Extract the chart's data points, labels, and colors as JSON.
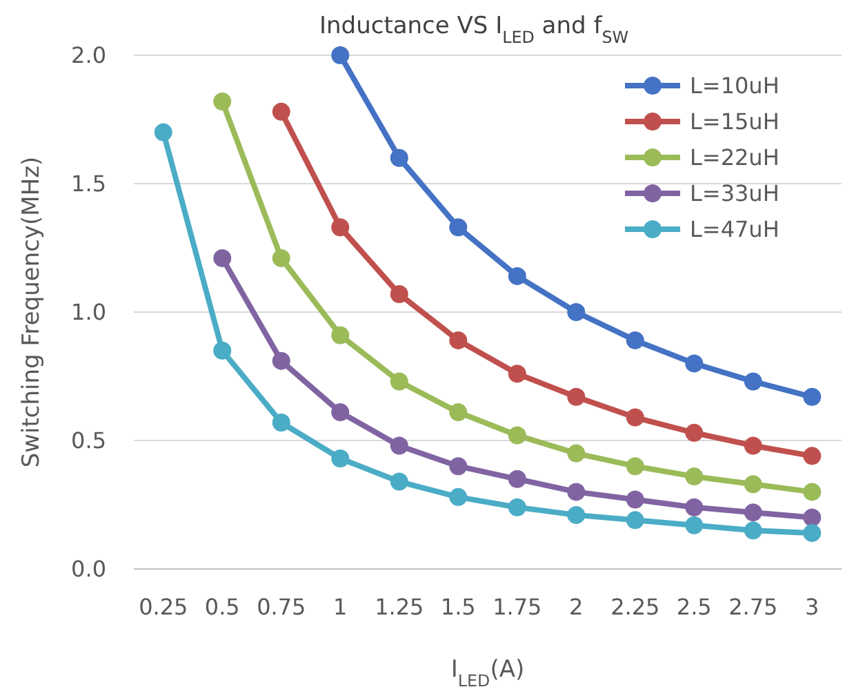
{
  "chart_data": {
    "type": "line",
    "title": "Inductance VS I$_{LED}$ and f$_{SW}$",
    "xlabel": "I$_{LED}$(A)",
    "ylabel": "Switching Frequency(MHz)",
    "categories": [
      "0.25",
      "0.5",
      "0.75",
      "1",
      "1.25",
      "1.5",
      "1.75",
      "2",
      "2.25",
      "2.5",
      "2.75",
      "3"
    ],
    "series": [
      {
        "name": "L=10uH",
        "color": "#4472c4",
        "values": [
          null,
          null,
          null,
          2.0,
          1.6,
          1.33,
          1.14,
          1.0,
          0.89,
          0.8,
          0.73,
          0.67
        ]
      },
      {
        "name": "L=15uH",
        "color": "#c0504d",
        "values": [
          null,
          null,
          1.78,
          1.33,
          1.07,
          0.89,
          0.76,
          0.67,
          0.59,
          0.53,
          0.48,
          0.44
        ]
      },
      {
        "name": "L=22uH",
        "color": "#9bbb59",
        "values": [
          null,
          1.82,
          1.21,
          0.91,
          0.73,
          0.61,
          0.52,
          0.45,
          0.4,
          0.36,
          0.33,
          0.3
        ]
      },
      {
        "name": "L=33uH",
        "color": "#8064a2",
        "values": [
          null,
          1.21,
          0.81,
          0.61,
          0.48,
          0.4,
          0.35,
          0.3,
          0.27,
          0.24,
          0.22,
          0.2
        ]
      },
      {
        "name": "L=47uH",
        "color": "#4bacc6",
        "values": [
          1.7,
          0.85,
          0.57,
          0.43,
          0.34,
          0.28,
          0.24,
          0.21,
          0.19,
          0.17,
          0.15,
          0.14
        ]
      }
    ],
    "ylim": [
      0,
      2
    ],
    "yticks": [
      {
        "value": 0,
        "label": "0.0"
      },
      {
        "value": 0.5,
        "label": "0.5"
      },
      {
        "value": 1,
        "label": "1.0"
      },
      {
        "value": 1.5,
        "label": "1.5"
      },
      {
        "value": 2,
        "label": "2.0"
      }
    ],
    "grid": "y",
    "legend": "top right",
    "marker": "circle",
    "line_style": "solid"
  }
}
